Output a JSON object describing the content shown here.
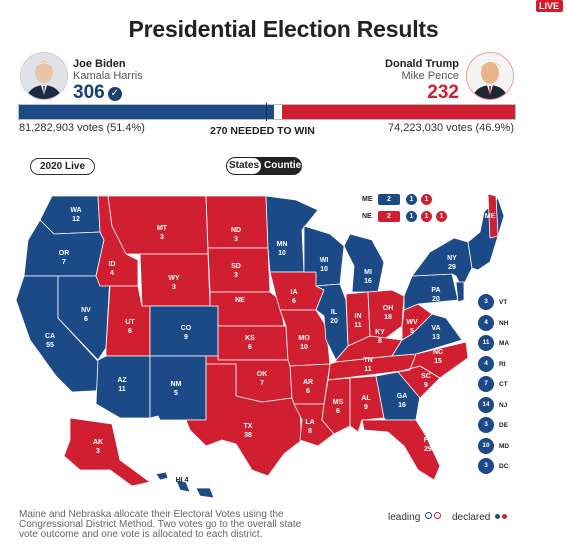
{
  "badge": "LIVE",
  "title": "Presidential Election Results",
  "colors": {
    "dem": "#1c4a86",
    "rep": "#d11f32",
    "accent_dem_text": "#1c3f75"
  },
  "democrat": {
    "name": "Joe Biden",
    "running_mate": "Kamala Harris",
    "electoral_votes": "306",
    "popular": "81,282,903 votes (51.4%)",
    "share": 51.4
  },
  "republican": {
    "name": "Donald Trump",
    "running_mate": "Mike Pence",
    "electoral_votes": "232",
    "popular": "74,223,030 votes (46.9%)",
    "share": 46.9
  },
  "needed": "270 NEEDED TO WIN",
  "year_select": "2020 Live",
  "view_toggle": {
    "selected": "States",
    "other": "Counties"
  },
  "split_states": [
    {
      "abbr": "ME",
      "badges": [
        {
          "text": "2",
          "party": "dem"
        },
        {
          "text": "1",
          "party": "dem"
        },
        {
          "text": "1",
          "party": "rep"
        }
      ]
    },
    {
      "abbr": "NE",
      "badges": [
        {
          "text": "2",
          "party": "rep"
        },
        {
          "text": "1",
          "party": "dem"
        },
        {
          "text": "1",
          "party": "rep"
        },
        {
          "text": "1",
          "party": "rep"
        }
      ]
    }
  ],
  "map_labels": [
    {
      "abbr": "WA",
      "ev": "12",
      "party": "dem"
    },
    {
      "abbr": "OR",
      "ev": "7",
      "party": "dem"
    },
    {
      "abbr": "CA",
      "ev": "55",
      "party": "dem"
    },
    {
      "abbr": "NV",
      "ev": "6",
      "party": "dem"
    },
    {
      "abbr": "ID",
      "ev": "4",
      "party": "rep"
    },
    {
      "abbr": "MT",
      "ev": "3",
      "party": "rep"
    },
    {
      "abbr": "WY",
      "ev": "3",
      "party": "rep"
    },
    {
      "abbr": "UT",
      "ev": "6",
      "party": "rep"
    },
    {
      "abbr": "AZ",
      "ev": "11",
      "party": "dem"
    },
    {
      "abbr": "CO",
      "ev": "9",
      "party": "dem"
    },
    {
      "abbr": "NM",
      "ev": "5",
      "party": "dem"
    },
    {
      "abbr": "ND",
      "ev": "3",
      "party": "rep"
    },
    {
      "abbr": "SD",
      "ev": "3",
      "party": "rep"
    },
    {
      "abbr": "NE",
      "ev": "",
      "party": "rep"
    },
    {
      "abbr": "KS",
      "ev": "6",
      "party": "rep"
    },
    {
      "abbr": "OK",
      "ev": "7",
      "party": "rep"
    },
    {
      "abbr": "TX",
      "ev": "38",
      "party": "rep"
    },
    {
      "abbr": "MN",
      "ev": "10",
      "party": "dem"
    },
    {
      "abbr": "IA",
      "ev": "6",
      "party": "rep"
    },
    {
      "abbr": "MO",
      "ev": "10",
      "party": "rep"
    },
    {
      "abbr": "AR",
      "ev": "6",
      "party": "rep"
    },
    {
      "abbr": "LA",
      "ev": "8",
      "party": "rep"
    },
    {
      "abbr": "WI",
      "ev": "10",
      "party": "dem"
    },
    {
      "abbr": "IL",
      "ev": "20",
      "party": "dem"
    },
    {
      "abbr": "MI",
      "ev": "16",
      "party": "dem"
    },
    {
      "abbr": "IN",
      "ev": "11",
      "party": "rep"
    },
    {
      "abbr": "OH",
      "ev": "18",
      "party": "rep"
    },
    {
      "abbr": "KY",
      "ev": "8",
      "party": "rep"
    },
    {
      "abbr": "TN",
      "ev": "11",
      "party": "rep"
    },
    {
      "abbr": "MS",
      "ev": "6",
      "party": "rep"
    },
    {
      "abbr": "AL",
      "ev": "9",
      "party": "rep"
    },
    {
      "abbr": "GA",
      "ev": "16",
      "party": "dem"
    },
    {
      "abbr": "FL",
      "ev": "29",
      "party": "rep"
    },
    {
      "abbr": "SC",
      "ev": "9",
      "party": "rep"
    },
    {
      "abbr": "NC",
      "ev": "15",
      "party": "rep"
    },
    {
      "abbr": "VA",
      "ev": "13",
      "party": "dem"
    },
    {
      "abbr": "WV",
      "ev": "5",
      "party": "rep"
    },
    {
      "abbr": "PA",
      "ev": "20",
      "party": "dem"
    },
    {
      "abbr": "NY",
      "ev": "29",
      "party": "dem"
    },
    {
      "abbr": "ME",
      "ev": "",
      "party": "dem"
    },
    {
      "abbr": "AK",
      "ev": "3",
      "party": "rep"
    },
    {
      "abbr": "HI",
      "ev": "4",
      "party": "dem"
    }
  ],
  "small_states": [
    {
      "abbr": "VT",
      "ev": "3"
    },
    {
      "abbr": "NH",
      "ev": "4"
    },
    {
      "abbr": "MA",
      "ev": "11"
    },
    {
      "abbr": "RI",
      "ev": "4"
    },
    {
      "abbr": "CT",
      "ev": "7"
    },
    {
      "abbr": "NJ",
      "ev": "14"
    },
    {
      "abbr": "DE",
      "ev": "3"
    },
    {
      "abbr": "MD",
      "ev": "10"
    },
    {
      "abbr": "DC",
      "ev": "3"
    }
  ],
  "note": "Maine and Nebraska allocate their Electoral Votes using the Congressional District Method. Two votes go to the overall state vote outcome and one vote is allocated to each district.",
  "legend": {
    "leading": "leading",
    "declared": "declared"
  }
}
